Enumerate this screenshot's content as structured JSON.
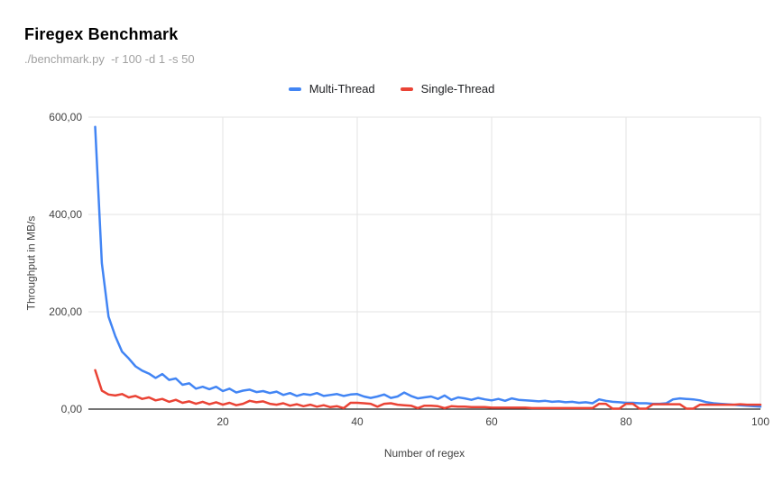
{
  "header": {
    "title": "Firegex Benchmark",
    "subtitle": "./benchmark.py  -r 100 -d 1 -s 50"
  },
  "legend": [
    {
      "label": "Multi-Thread",
      "color": "#4285f4"
    },
    {
      "label": "Single-Thread",
      "color": "#ea4335"
    }
  ],
  "style": {
    "grid_color": "#e3e3e3",
    "axis_line_color": "#222222",
    "tick_label_color": "#424242",
    "axis_title_color": "#424242",
    "background": "#ffffff"
  },
  "chart_data": {
    "type": "line",
    "title": "Firegex Benchmark",
    "subtitle": "./benchmark.py  -r 100 -d 1 -s 50",
    "xlabel": "Number of regex",
    "ylabel": "Throughput in MB/s",
    "xlim": [
      0,
      100
    ],
    "ylim": [
      0,
      600
    ],
    "grid": true,
    "legend_position": "top",
    "x_tick_values": [
      20,
      40,
      60,
      80,
      100
    ],
    "x_ticks": [
      "20",
      "40",
      "60",
      "80",
      "100"
    ],
    "y_tick_values": [
      0,
      200,
      400,
      600
    ],
    "y_ticks": [
      "0,00",
      "200,00",
      "400,00",
      "600,00"
    ],
    "x": [
      1,
      2,
      3,
      4,
      5,
      6,
      7,
      8,
      9,
      10,
      11,
      12,
      13,
      14,
      15,
      16,
      17,
      18,
      19,
      20,
      21,
      22,
      23,
      24,
      25,
      26,
      27,
      28,
      29,
      30,
      31,
      32,
      33,
      34,
      35,
      36,
      37,
      38,
      39,
      40,
      41,
      42,
      43,
      44,
      45,
      46,
      47,
      48,
      49,
      50,
      51,
      52,
      53,
      54,
      55,
      56,
      57,
      58,
      59,
      60,
      61,
      62,
      63,
      64,
      65,
      66,
      67,
      68,
      69,
      70,
      71,
      72,
      73,
      74,
      75,
      76,
      77,
      78,
      79,
      80,
      81,
      82,
      83,
      84,
      85,
      86,
      87,
      88,
      89,
      90,
      91,
      92,
      93,
      94,
      95,
      96,
      97,
      98,
      99,
      100
    ],
    "series": [
      {
        "name": "Multi-Thread",
        "color": "#4285f4",
        "values": [
          580,
          300,
          190,
          150,
          118,
          104,
          88,
          79,
          73,
          64,
          72,
          60,
          63,
          50,
          53,
          42,
          46,
          41,
          46,
          37,
          42,
          34,
          38,
          40,
          35,
          37,
          33,
          36,
          29,
          33,
          27,
          31,
          29,
          33,
          27,
          29,
          31,
          27,
          30,
          31,
          26,
          23,
          26,
          30,
          23,
          26,
          34,
          27,
          22,
          24,
          26,
          21,
          28,
          19,
          24,
          22,
          19,
          23,
          20,
          18,
          21,
          17,
          22,
          19,
          18,
          17,
          16,
          17,
          15,
          16,
          14,
          15,
          13,
          14,
          12,
          20,
          17,
          15,
          14,
          13,
          13,
          12,
          12,
          11,
          11,
          12,
          20,
          22,
          21,
          20,
          18,
          14,
          12,
          11,
          10,
          9,
          8,
          7,
          6,
          5
        ]
      },
      {
        "name": "Single-Thread",
        "color": "#ea4335",
        "values": [
          80,
          38,
          30,
          28,
          31,
          24,
          27,
          21,
          24,
          18,
          21,
          15,
          19,
          13,
          16,
          11,
          15,
          10,
          14,
          9,
          13,
          8,
          11,
          17,
          14,
          16,
          11,
          9,
          12,
          7,
          10,
          6,
          9,
          5,
          8,
          4,
          6,
          2,
          13,
          13,
          12,
          11,
          5,
          11,
          12,
          9,
          8,
          7,
          2,
          7,
          7,
          6,
          2,
          6,
          5,
          5,
          4,
          4,
          4,
          3,
          3,
          3,
          3,
          3,
          3,
          2,
          2,
          2,
          2,
          2,
          2,
          2,
          2,
          2,
          2,
          11,
          11,
          1,
          1,
          11,
          11,
          1,
          1,
          10,
          10,
          10,
          10,
          10,
          1,
          1,
          9,
          9,
          9,
          9,
          9,
          9,
          10,
          9,
          9,
          9
        ]
      }
    ]
  }
}
